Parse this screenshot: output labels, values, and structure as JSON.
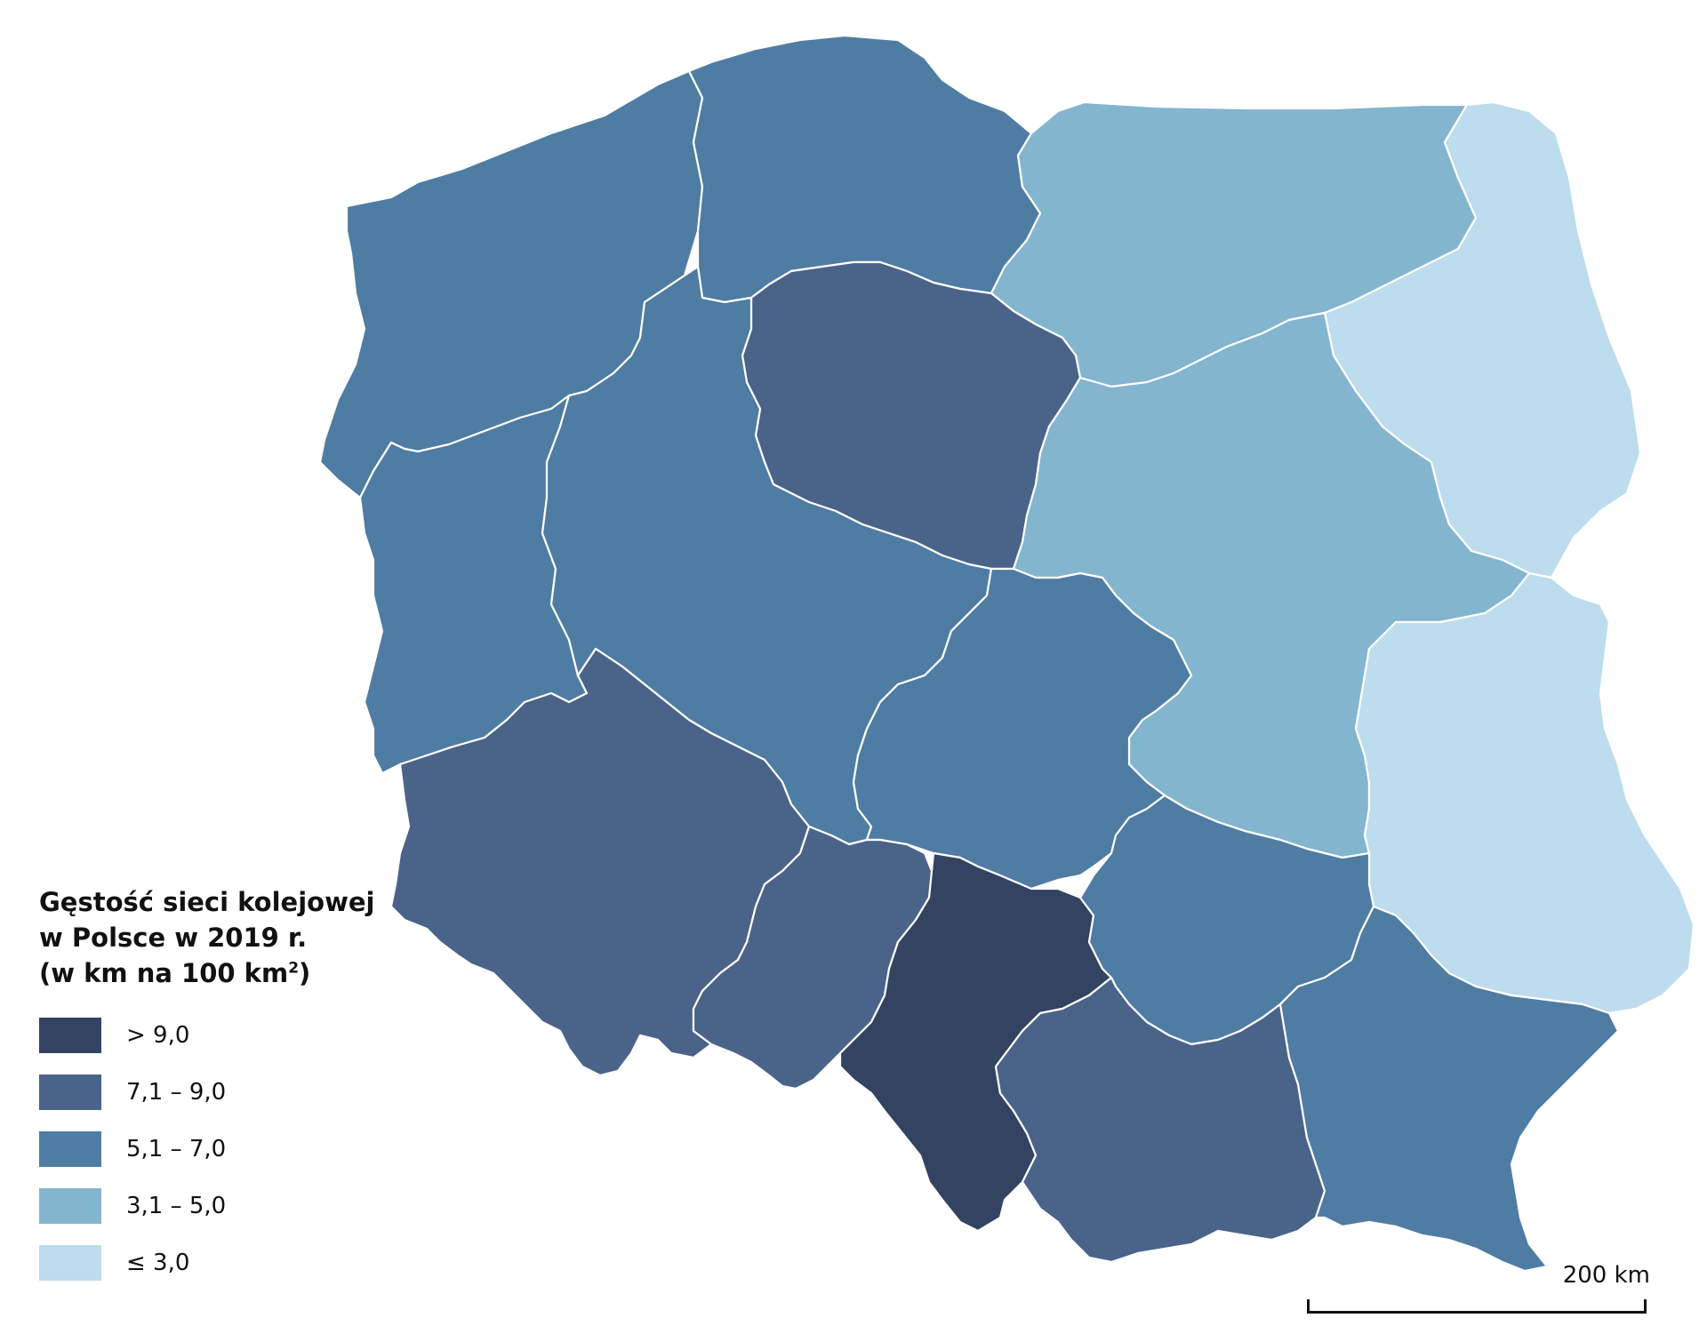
{
  "legend": {
    "title_line1": "Gęstość sieci kolejowej",
    "title_line2": "w Polsce w 2019 r.",
    "title_line3_pre": "(w km na 100 km",
    "title_line3_sup": "2",
    "title_line3_post": ")",
    "classes": [
      {
        "id": "c5",
        "label": "> 9,0",
        "color": "#334361"
      },
      {
        "id": "c4",
        "label": "7,1 – 9,0",
        "color": "#4a6389"
      },
      {
        "id": "c3",
        "label": "5,1 – 7,0",
        "color": "#4f7ca3"
      },
      {
        "id": "c2",
        "label": "3,1 – 5,0",
        "color": "#84b5cf"
      },
      {
        "id": "c1",
        "label": "≤ 3,0",
        "color": "#bddcee"
      }
    ]
  },
  "scale": {
    "label": "200 km"
  },
  "regions": [
    {
      "id": "zachodniopomorskie",
      "class": "c3"
    },
    {
      "id": "pomorskie",
      "class": "c3"
    },
    {
      "id": "warminsko-mazurskie",
      "class": "c2"
    },
    {
      "id": "podlaskie",
      "class": "c1"
    },
    {
      "id": "kujawsko-pomorskie",
      "class": "c4"
    },
    {
      "id": "lubuskie",
      "class": "c3"
    },
    {
      "id": "wielkopolskie",
      "class": "c3"
    },
    {
      "id": "mazowieckie",
      "class": "c2"
    },
    {
      "id": "lodzkie",
      "class": "c3"
    },
    {
      "id": "lubelskie",
      "class": "c1"
    },
    {
      "id": "dolnoslaskie",
      "class": "c4"
    },
    {
      "id": "opolskie",
      "class": "c4"
    },
    {
      "id": "slaskie",
      "class": "c5"
    },
    {
      "id": "swietokrzyskie",
      "class": "c3"
    },
    {
      "id": "malopolskie",
      "class": "c4"
    },
    {
      "id": "podkarpackie",
      "class": "c3"
    }
  ]
}
